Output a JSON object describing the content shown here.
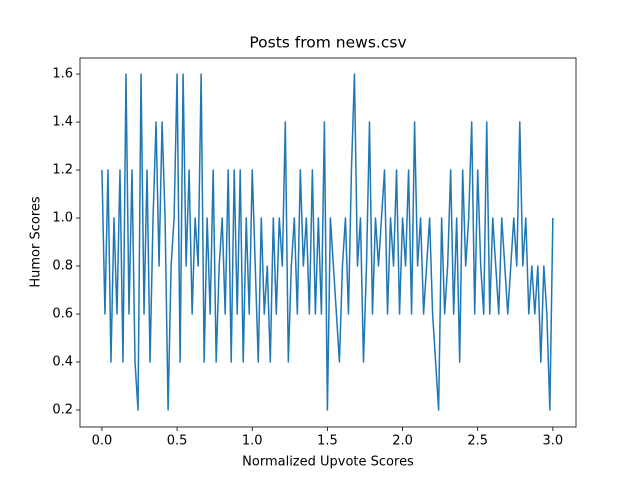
{
  "chart_data": {
    "type": "line",
    "title": "Posts from news.csv",
    "x_label": "Normalized Upvote Scores",
    "y_label": "Humor Scores",
    "x": [
      0,
      0.02,
      0.04,
      0.06,
      0.08,
      0.1,
      0.12,
      0.14,
      0.16,
      0.18,
      0.2,
      0.22,
      0.24,
      0.26,
      0.28,
      0.3,
      0.32,
      0.34,
      0.36,
      0.38,
      0.4,
      0.42,
      0.44,
      0.46,
      0.48,
      0.5,
      0.52,
      0.54,
      0.56,
      0.58,
      0.6,
      0.62,
      0.64,
      0.66,
      0.68,
      0.7,
      0.72,
      0.74,
      0.76,
      0.78,
      0.8,
      0.82,
      0.84,
      0.86,
      0.88,
      0.9,
      0.92,
      0.94,
      0.96,
      0.98,
      1,
      1.02,
      1.04,
      1.06,
      1.08,
      1.1,
      1.12,
      1.14,
      1.16,
      1.18,
      1.2,
      1.22,
      1.24,
      1.26,
      1.28,
      1.3,
      1.32,
      1.34,
      1.36,
      1.38,
      1.4,
      1.42,
      1.44,
      1.46,
      1.48,
      1.5,
      1.52,
      1.54,
      1.56,
      1.58,
      1.6,
      1.62,
      1.64,
      1.66,
      1.68,
      1.7,
      1.72,
      1.74,
      1.76,
      1.78,
      1.8,
      1.82,
      1.84,
      1.86,
      1.88,
      1.9,
      1.92,
      1.94,
      1.96,
      1.98,
      2,
      2.02,
      2.04,
      2.06,
      2.08,
      2.1,
      2.12,
      2.14,
      2.16,
      2.18,
      2.2,
      2.22,
      2.24,
      2.26,
      2.28,
      2.3,
      2.32,
      2.34,
      2.36,
      2.38,
      2.4,
      2.42,
      2.44,
      2.46,
      2.48,
      2.5,
      2.52,
      2.54,
      2.56,
      2.58,
      2.6,
      2.62,
      2.64,
      2.66,
      2.68,
      2.7,
      2.72,
      2.74,
      2.76,
      2.78,
      2.8,
      2.82,
      2.84,
      2.86,
      2.88,
      2.9,
      2.92,
      2.94,
      2.96,
      2.98,
      3
    ],
    "series": [
      {
        "name": "Humor",
        "color": "#1f77b4",
        "values": [
          1.2,
          0.6,
          1.2,
          0.4,
          1.0,
          0.6,
          1.2,
          0.4,
          1.6,
          0.6,
          1.2,
          0.4,
          0.2,
          1.6,
          0.6,
          1.2,
          0.4,
          1.0,
          1.4,
          0.8,
          1.4,
          1.0,
          0.2,
          0.8,
          1.0,
          1.6,
          0.4,
          1.6,
          0.8,
          1.2,
          0.6,
          1.0,
          0.8,
          1.6,
          0.4,
          1.0,
          0.6,
          1.2,
          0.4,
          0.8,
          1.0,
          0.6,
          1.2,
          0.4,
          1.2,
          0.6,
          1.2,
          0.4,
          1.0,
          0.6,
          1.2,
          0.8,
          0.4,
          1.0,
          0.6,
          0.8,
          0.4,
          1.0,
          0.6,
          1.0,
          0.8,
          1.4,
          0.4,
          0.8,
          1.0,
          0.6,
          1.2,
          0.8,
          1.0,
          0.6,
          1.2,
          0.6,
          1.0,
          0.6,
          1.4,
          0.2,
          1.0,
          0.8,
          0.6,
          0.4,
          0.8,
          1.0,
          0.6,
          1.2,
          1.6,
          0.8,
          1.0,
          0.4,
          0.8,
          1.4,
          0.6,
          1.0,
          0.8,
          1.0,
          1.2,
          0.6,
          1.0,
          0.8,
          1.2,
          0.6,
          1.0,
          0.8,
          1.2,
          0.6,
          1.4,
          0.8,
          1.0,
          0.6,
          0.8,
          1.0,
          0.6,
          0.4,
          0.2,
          1.0,
          0.6,
          0.8,
          1.2,
          0.6,
          1.0,
          0.4,
          1.2,
          0.8,
          1.0,
          1.4,
          0.6,
          1.2,
          0.8,
          0.6,
          1.4,
          0.6,
          1.0,
          0.8,
          0.6,
          1.0,
          0.8,
          0.6,
          0.8,
          1.0,
          0.8,
          1.4,
          0.8,
          1.0,
          0.6,
          0.8,
          0.6,
          0.8,
          0.4,
          0.8,
          0.6,
          0.2,
          1.0
        ]
      }
    ],
    "xlim": [
      -0.146,
      3.154
    ],
    "ylim": [
      0.129,
      1.667
    ],
    "xticks": [
      {
        "value": 0,
        "label": "0.0"
      },
      0.5,
      {
        "value": 1,
        "label": "1.0"
      },
      1.5,
      {
        "value": 2,
        "label": "2.0"
      },
      2.5,
      {
        "value": 3,
        "label": "3.0"
      }
    ],
    "yticks": [
      0.2,
      0.4,
      0.6,
      0.8,
      {
        "value": 1,
        "label": "1.0"
      },
      1.2,
      1.4,
      1.6
    ]
  }
}
